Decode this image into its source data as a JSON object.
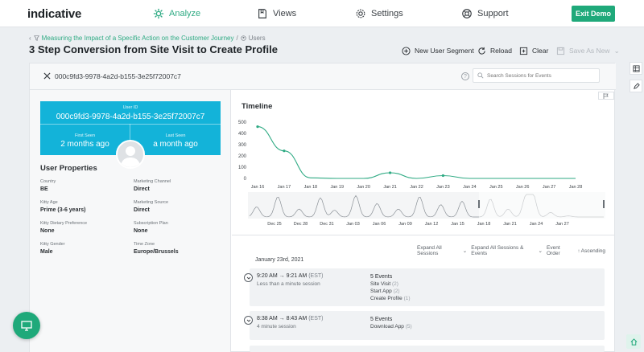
{
  "app": {
    "logo": "indicative"
  },
  "nav": {
    "items": [
      {
        "label": "Analyze",
        "icon": "gear-cog-icon",
        "active": true
      },
      {
        "label": "Views",
        "icon": "book-icon",
        "active": false
      },
      {
        "label": "Settings",
        "icon": "settings-icon",
        "active": false
      },
      {
        "label": "Support",
        "icon": "lifebuoy-icon",
        "active": false
      }
    ],
    "exit_label": "Exit Demo"
  },
  "breadcrumb": {
    "parent": "Measuring the Impact of a Specific Action on the Customer Journey",
    "separator": "/",
    "current": "Users"
  },
  "header": {
    "title": "3 Step Conversion from Site Visit to Create Profile",
    "actions": {
      "new_segment": "New User Segment",
      "reload": "Reload",
      "clear": "Clear",
      "save_as_new": "Save As New"
    }
  },
  "search": {
    "user_id": "000c9fd3-9978-4a2d-b155-3e25f72007c7",
    "help": "?",
    "placeholder": "Search Sessions for Events"
  },
  "user": {
    "id_label": "User ID",
    "id": "000c9fd3-9978-4a2d-b155-3e25f72007c7",
    "first_seen_label": "First Seen",
    "first_seen": "2 months ago",
    "last_seen_label": "Last Seen",
    "last_seen": "a month ago",
    "properties_title": "User Properties",
    "properties": [
      {
        "key": "Country",
        "value": "BE"
      },
      {
        "key": "Marketing Channel",
        "value": "Direct"
      },
      {
        "key": "Kitty Age",
        "value": "Prime (3-6 years)"
      },
      {
        "key": "Marketing Source",
        "value": "Direct"
      },
      {
        "key": "Kitty Dietary Preference",
        "value": "None"
      },
      {
        "key": "Subscription Plan",
        "value": "None"
      },
      {
        "key": "Kitty Gender",
        "value": "Male"
      },
      {
        "key": "Time Zone",
        "value": "Europe/Brussels"
      }
    ]
  },
  "timeline": {
    "title": "Timeline",
    "chart_data": {
      "type": "line",
      "y_ticks": [
        "500",
        "400",
        "300",
        "200",
        "100",
        "0"
      ],
      "x_ticks": [
        "Jan 16",
        "Jan 17",
        "Jan 18",
        "Jan 19",
        "Jan 20",
        "Jan 21",
        "Jan 22",
        "Jan 23",
        "Jan 24",
        "Jan 25",
        "Jan 26",
        "Jan 27",
        "Jan 28"
      ],
      "ylim": [
        0,
        500
      ],
      "points": [
        {
          "x": "Jan 16",
          "y": 460
        },
        {
          "x": "Jan 17",
          "y": 245
        },
        {
          "x": "Jan 18",
          "y": 5
        },
        {
          "x": "Jan 19",
          "y": 0
        },
        {
          "x": "Jan 20",
          "y": 0
        },
        {
          "x": "Jan 21",
          "y": 50
        },
        {
          "x": "Jan 22",
          "y": 0
        },
        {
          "x": "Jan 23",
          "y": 25
        },
        {
          "x": "Jan 24",
          "y": 0
        },
        {
          "x": "Jan 25",
          "y": 0
        },
        {
          "x": "Jan 26",
          "y": 0
        },
        {
          "x": "Jan 27",
          "y": 0
        },
        {
          "x": "Jan 28",
          "y": 0
        }
      ],
      "overview_ticks": [
        "Dec 25",
        "Dec 28",
        "Dec 31",
        "Jan 03",
        "Jan 06",
        "Jan 09",
        "Jan 12",
        "Jan 15",
        "Jan 18",
        "Jan 21",
        "Jan 24",
        "Jan 27"
      ],
      "color": "#2eaa83"
    }
  },
  "sessions": {
    "expand_all": "Expand All Sessions",
    "expand_all_events": "Expand All Sessions & Events",
    "event_order": "Event Order",
    "ascending": "Ascending",
    "date": "January 23rd, 2021",
    "list": [
      {
        "time": "9:20 AM → 9:21 AM",
        "tz": "(EST)",
        "duration": "Less than a minute session",
        "events_head": "5 Events",
        "events": [
          {
            "name": "Site Visit",
            "count": "(2)"
          },
          {
            "name": "Start App",
            "count": "(2)"
          },
          {
            "name": "Create Profile",
            "count": "(1)"
          }
        ]
      },
      {
        "time": "8:38 AM → 8:43 AM",
        "tz": "(EST)",
        "duration": "4 minute session",
        "events_head": "5 Events",
        "events": [
          {
            "name": "Download App",
            "count": "(5)"
          }
        ]
      }
    ]
  }
}
